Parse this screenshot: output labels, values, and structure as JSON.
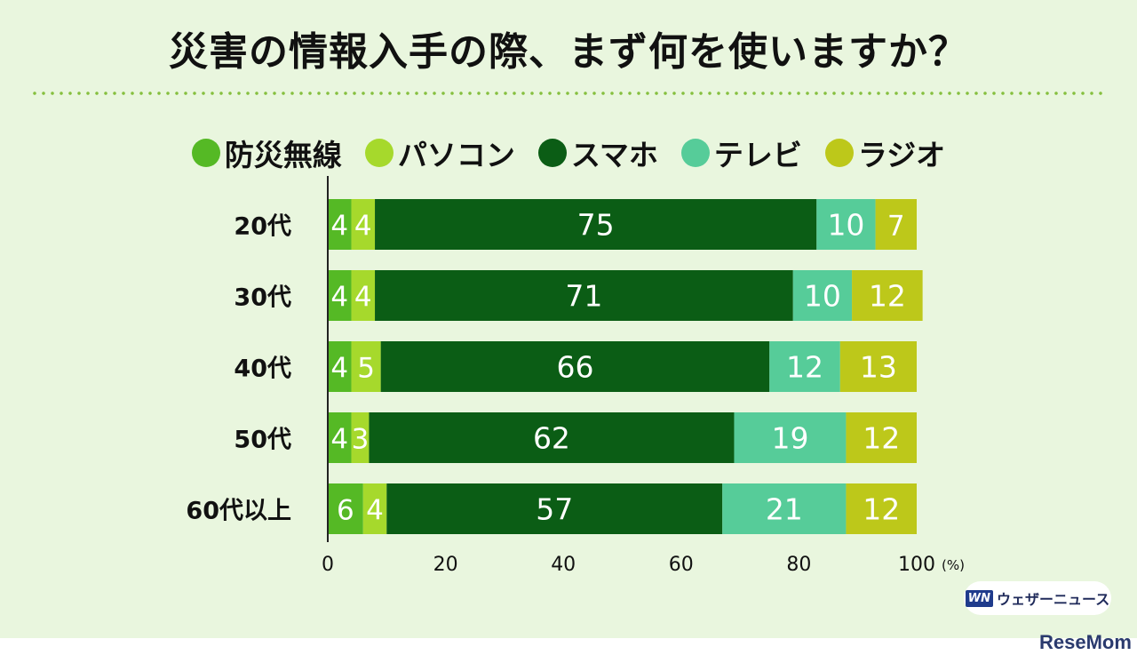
{
  "title": "災害の情報入手の際、まず何を使いますか？",
  "branding": {
    "logo_text": "WN",
    "service_name": "ウェザーニュース",
    "site_name": "ReseMom"
  },
  "chart_data": {
    "type": "bar",
    "orientation": "horizontal",
    "stacked": true,
    "title": "災害の情報入手の際、まず何を使いますか？",
    "categories": [
      "20代",
      "30代",
      "40代",
      "50代",
      "60代以上"
    ],
    "series": [
      {
        "name": "防災無線",
        "color": "#55b925",
        "values": [
          4,
          4,
          4,
          4,
          6
        ]
      },
      {
        "name": "パソコン",
        "color": "#a6d92c",
        "values": [
          4,
          4,
          5,
          3,
          4
        ]
      },
      {
        "name": "スマホ",
        "color": "#0b5d15",
        "values": [
          75,
          71,
          66,
          62,
          57
        ]
      },
      {
        "name": "テレビ",
        "color": "#56cc99",
        "values": [
          10,
          10,
          12,
          19,
          21
        ]
      },
      {
        "name": "ラジオ",
        "color": "#bdc81a",
        "values": [
          7,
          12,
          13,
          12,
          12
        ]
      }
    ],
    "xlim": [
      0,
      100
    ],
    "xticks": [
      0,
      20,
      40,
      60,
      80,
      100
    ],
    "unit_label": "(%)",
    "legend_position": "top",
    "grid": false
  }
}
